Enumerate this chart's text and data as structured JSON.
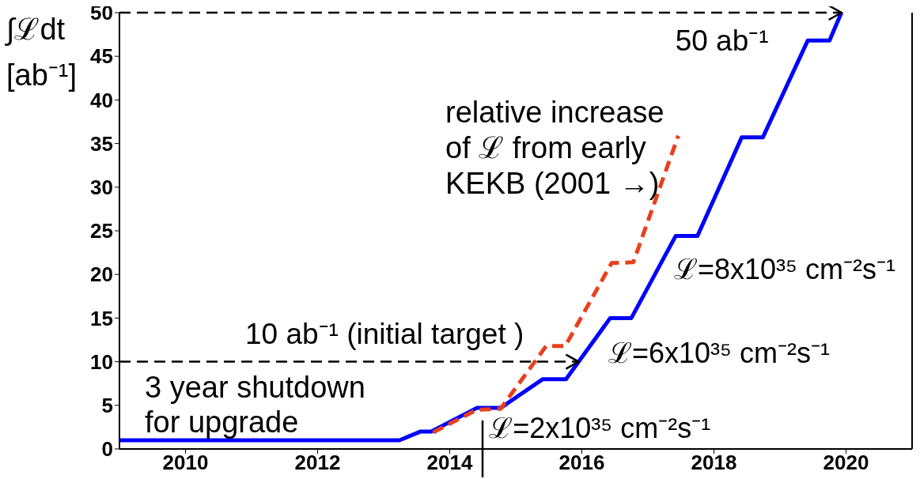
{
  "chart_data": {
    "type": "line",
    "ylabel": "∫ℒdt [ab⁻¹]",
    "series": [
      {
        "color": "#0000ff",
        "line_style": "solid",
        "x": [
          2009,
          2013.24,
          2013.56,
          2013.72,
          2014.41,
          2014.77,
          2015.41,
          2015.76,
          2016.43,
          2016.75,
          2017.42,
          2017.75,
          2018.42,
          2018.74,
          2019.42,
          2019.75,
          2019.93
        ],
        "values": [
          1,
          1,
          2,
          2,
          4.7,
          4.7,
          8,
          8,
          15,
          15,
          24.4,
          24.4,
          35.7,
          35.7,
          46.8,
          46.8,
          50
        ]
      },
      {
        "color": "#e8401c",
        "line_style": "dashed",
        "x": [
          2013.75,
          2014.41,
          2014.77,
          2015.46,
          2015.75,
          2016.45,
          2016.78,
          2017.46
        ],
        "values": [
          1.9,
          4.5,
          4.6,
          11.8,
          11.8,
          21.3,
          21.4,
          35.9
        ]
      }
    ],
    "xlim": [
      2009,
      2021
    ],
    "xticks": [
      2010,
      2012,
      2014,
      2016,
      2018,
      2020
    ],
    "ylim": [
      0,
      50
    ],
    "yticks": [
      0,
      5,
      10,
      15,
      20,
      25,
      30,
      35,
      40,
      45,
      50
    ],
    "marker": "none",
    "ref_lines": [
      {
        "axis": "y",
        "value": 50,
        "label": "50 ab⁻¹",
        "line_style": "dashed",
        "color": "#000000"
      },
      {
        "axis": "y",
        "value": 10,
        "label": "10 ab⁻¹ (initial target )",
        "line_style": "dashed",
        "color": "#000000"
      }
    ],
    "annotations": [
      "3 year shutdown for upgrade",
      {
        "text": "ℒ=2x10³⁵ cm⁻²s⁻¹",
        "x": 2014.5,
        "y": 4.7
      },
      "ℒ=6x10³⁵ cm⁻²s⁻¹",
      "ℒ=8x10³⁵ cm⁻²s⁻¹",
      "relative increase of ℒ from early KEKB (2001 →)"
    ]
  }
}
